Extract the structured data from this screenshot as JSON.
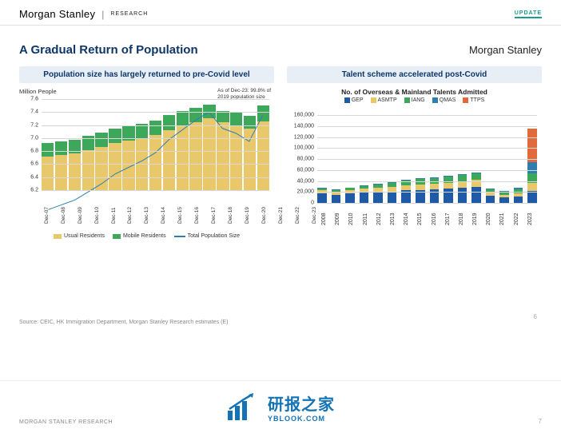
{
  "header": {
    "brand": "Morgan Stanley",
    "research": "RESEARCH",
    "update": "UPDATE"
  },
  "page": {
    "title": "A Gradual Return of Population",
    "brand_right": "Morgan Stanley",
    "source": "Source: CEIC, HK Immigration Department, Morgan Stanley Research estimates (E)",
    "slide_num": "6",
    "page_num": "7"
  },
  "footer": {
    "left": "MORGAN STANLEY RESEARCH",
    "watermark_cn": "研报之家",
    "watermark_en": "YBLOOK.COM"
  },
  "chart1": {
    "type": "stacked-bar-with-line",
    "title": "Population size has largely returned to pre-Covid level",
    "ylabel": "Million People",
    "annotation": "As of Dec-23: 99.8% of\n2019 population size",
    "ymin": 6.2,
    "ymax": 7.6,
    "ytick_step": 0.2,
    "yticks": [
      "6.2",
      "6.4",
      "6.6",
      "6.8",
      "7.0",
      "7.2",
      "7.4",
      "7.6"
    ],
    "colors": {
      "usual": "#e9c86b",
      "mobile": "#3ea85a",
      "line": "#2e7fb0",
      "grid": "#d8d8d8"
    },
    "legend": [
      {
        "label": "Usual Residents",
        "type": "box",
        "color": "#e9c86b"
      },
      {
        "label": "Mobile Residents",
        "type": "box",
        "color": "#3ea85a"
      },
      {
        "label": "Total Population Size",
        "type": "line",
        "color": "#2e7fb0"
      }
    ],
    "xlabels": [
      "Dec-07",
      "Dec-08",
      "Dec-09",
      "Dec-10",
      "Dec-11",
      "Dec-12",
      "Dec-13",
      "Dec-14",
      "Dec-15",
      "Dec-16",
      "Dec-17",
      "Dec-18",
      "Dec-19",
      "Dec-20",
      "Dec-21",
      "Dec-22",
      "Dec-23"
    ],
    "data": [
      {
        "usual": 6.72,
        "mobile": 0.2,
        "total": 6.92
      },
      {
        "usual": 6.74,
        "mobile": 0.21,
        "total": 6.95
      },
      {
        "usual": 6.77,
        "mobile": 0.21,
        "total": 6.98
      },
      {
        "usual": 6.82,
        "mobile": 0.21,
        "total": 7.03
      },
      {
        "usual": 6.86,
        "mobile": 0.22,
        "total": 7.08
      },
      {
        "usual": 6.92,
        "mobile": 0.22,
        "total": 7.14
      },
      {
        "usual": 6.96,
        "mobile": 0.22,
        "total": 7.18
      },
      {
        "usual": 7.0,
        "mobile": 0.22,
        "total": 7.22
      },
      {
        "usual": 7.05,
        "mobile": 0.22,
        "total": 7.27
      },
      {
        "usual": 7.12,
        "mobile": 0.23,
        "total": 7.35
      },
      {
        "usual": 7.18,
        "mobile": 0.23,
        "total": 7.41
      },
      {
        "usual": 7.24,
        "mobile": 0.23,
        "total": 7.47
      },
      {
        "usual": 7.3,
        "mobile": 0.22,
        "total": 7.52
      },
      {
        "usual": 7.25,
        "mobile": 0.17,
        "total": 7.42
      },
      {
        "usual": 7.2,
        "mobile": 0.19,
        "total": 7.39
      },
      {
        "usual": 7.14,
        "mobile": 0.2,
        "total": 7.34
      },
      {
        "usual": 7.26,
        "mobile": 0.24,
        "total": 7.5
      }
    ]
  },
  "chart2": {
    "type": "stacked-bar",
    "panel_title": "Talent scheme accelerated post-Covid",
    "inner_title": "No. of Overseas & Mainland Talents Admitted",
    "ymin": 0,
    "ymax": 160000,
    "ytick_step": 20000,
    "yticks": [
      "0",
      "20,000",
      "40,000",
      "60,000",
      "80,000",
      "100,000",
      "120,000",
      "140,000",
      "160,000"
    ],
    "colors": {
      "GEP": "#1f5aa6",
      "ASMTP": "#e9c86b",
      "IANG": "#3ea85a",
      "QMAS": "#2e7fb0",
      "TTPS": "#e06a3b",
      "grid": "#d8d8d8"
    },
    "series_order": [
      "GEP",
      "ASMTP",
      "IANG",
      "QMAS",
      "TTPS"
    ],
    "legend": [
      {
        "label": "GEP",
        "color": "#1f5aa6"
      },
      {
        "label": "ASMTP",
        "color": "#e9c86b"
      },
      {
        "label": "IANG",
        "color": "#3ea85a"
      },
      {
        "label": "QMAS",
        "color": "#2e7fb0"
      },
      {
        "label": "TTPS",
        "color": "#e06a3b"
      }
    ],
    "xlabels": [
      "2008",
      "2009",
      "2010",
      "2011",
      "2012",
      "2013",
      "2014",
      "2015",
      "2016",
      "2017",
      "2018",
      "2019",
      "2020",
      "2021",
      "2022",
      "2023"
    ],
    "data": [
      {
        "GEP": 18000,
        "ASMTP": 6000,
        "IANG": 2500,
        "QMAS": 500,
        "TTPS": 0
      },
      {
        "GEP": 15000,
        "ASMTP": 5500,
        "IANG": 3000,
        "QMAS": 600,
        "TTPS": 0
      },
      {
        "GEP": 17000,
        "ASMTP": 6500,
        "IANG": 3500,
        "QMAS": 700,
        "TTPS": 0
      },
      {
        "GEP": 19000,
        "ASMTP": 7500,
        "IANG": 4500,
        "QMAS": 800,
        "TTPS": 0
      },
      {
        "GEP": 20000,
        "ASMTP": 8000,
        "IANG": 6000,
        "QMAS": 900,
        "TTPS": 0
      },
      {
        "GEP": 21000,
        "ASMTP": 8500,
        "IANG": 7500,
        "QMAS": 900,
        "TTPS": 0
      },
      {
        "GEP": 23000,
        "ASMTP": 9000,
        "IANG": 9000,
        "QMAS": 1000,
        "TTPS": 0
      },
      {
        "GEP": 24000,
        "ASMTP": 9500,
        "IANG": 10000,
        "QMAS": 1000,
        "TTPS": 0
      },
      {
        "GEP": 25000,
        "ASMTP": 10000,
        "IANG": 10500,
        "QMAS": 1100,
        "TTPS": 0
      },
      {
        "GEP": 26000,
        "ASMTP": 11000,
        "IANG": 11000,
        "QMAS": 1200,
        "TTPS": 0
      },
      {
        "GEP": 28000,
        "ASMTP": 12000,
        "IANG": 11500,
        "QMAS": 1300,
        "TTPS": 0
      },
      {
        "GEP": 29000,
        "ASMTP": 13000,
        "IANG": 12000,
        "QMAS": 1400,
        "TTPS": 0
      },
      {
        "GEP": 13000,
        "ASMTP": 6000,
        "IANG": 6000,
        "QMAS": 1700,
        "TTPS": 0
      },
      {
        "GEP": 10000,
        "ASMTP": 5000,
        "IANG": 5000,
        "QMAS": 2000,
        "TTPS": 0
      },
      {
        "GEP": 11000,
        "ASMTP": 7000,
        "IANG": 7000,
        "QMAS": 3000,
        "TTPS": 0
      },
      {
        "GEP": 22000,
        "ASMTP": 14000,
        "IANG": 18000,
        "QMAS": 20000,
        "TTPS": 62000
      }
    ]
  }
}
